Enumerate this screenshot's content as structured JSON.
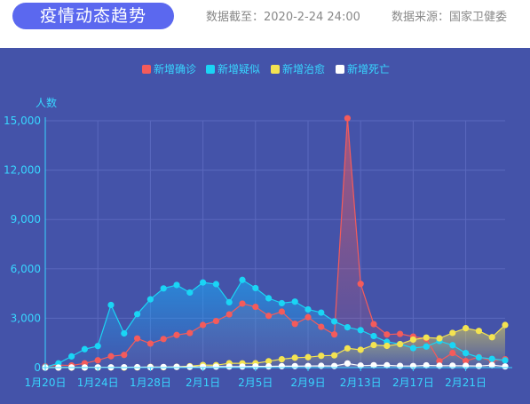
{
  "header": {
    "title": "疫情动态趋势",
    "data_time": "数据截至：2020-2-24 24:00",
    "data_source": "数据来源：国家卫健委"
  },
  "chart_data": {
    "type": "line",
    "ylabel": "人数",
    "ylim": [
      0,
      15000
    ],
    "yticks": [
      "0",
      "3,000",
      "6,000",
      "9,000",
      "12,000",
      "15,000"
    ],
    "x": [
      "1月20日",
      "1月21日",
      "1月22日",
      "1月23日",
      "1月24日",
      "1月25日",
      "1月26日",
      "1月27日",
      "1月28日",
      "1月29日",
      "1月30日",
      "1月31日",
      "2月1日",
      "2月2日",
      "2月3日",
      "2月4日",
      "2月5日",
      "2月6日",
      "2月7日",
      "2月8日",
      "2月9日",
      "2月10日",
      "2月11日",
      "2月12日",
      "2月13日",
      "2月14日",
      "2月15日",
      "2月16日",
      "2月17日",
      "2月18日",
      "2月19日",
      "2月20日",
      "2月21日",
      "2月22日",
      "2月23日",
      "2月24日"
    ],
    "xtick_labels": [
      "1月20日",
      "1月24日",
      "1月28日",
      "2月1日",
      "2月5日",
      "2月9日",
      "2月13日",
      "2月17日",
      "2月21日"
    ],
    "xtick_indices": [
      0,
      4,
      8,
      12,
      16,
      20,
      24,
      28,
      32
    ],
    "legend_position": "top-center",
    "grid": true,
    "series": [
      {
        "name": "新增确诊",
        "color": "#f45b5b",
        "values": [
          77,
          149,
          131,
          259,
          444,
          688,
          769,
          1771,
          1459,
          1737,
          1982,
          2102,
          2590,
          2829,
          3235,
          3887,
          3694,
          3143,
          3399,
          2656,
          3062,
          2478,
          2015,
          15152,
          5090,
          2641,
          2009,
          2048,
          1886,
          1749,
          394,
          889,
          397,
          648,
          409,
          508
        ]
      },
      {
        "name": "新增疑似",
        "color": "#1ad5f5",
        "values": [
          27,
          257,
          680,
          1118,
          1309,
          3806,
          2077,
          3248,
          4148,
          4812,
          5019,
          4562,
          5173,
          5072,
          3971,
          5328,
          4833,
          4214,
          3916,
          4008,
          3536,
          3342,
          2807,
          2450,
          2277,
          1918,
          1563,
          1432,
          1185,
          1277,
          1614,
          1361,
          882,
          620,
          530,
          439
        ]
      },
      {
        "name": "新增治愈",
        "color": "#f3e351",
        "values": [
          0,
          0,
          0,
          6,
          3,
          11,
          2,
          9,
          43,
          21,
          47,
          85,
          157,
          147,
          262,
          261,
          262,
          387,
          510,
          600,
          632,
          716,
          744,
          1171,
          1081,
          1373,
          1323,
          1425,
          1701,
          1824,
          1779,
          2109,
          2394,
          2230,
          1846,
          2589
        ]
      },
      {
        "name": "新增死亡",
        "color": "#ffffff",
        "values": [
          0,
          3,
          8,
          8,
          16,
          15,
          24,
          26,
          26,
          38,
          43,
          46,
          45,
          57,
          64,
          65,
          73,
          73,
          86,
          89,
          97,
          108,
          97,
          254,
          121,
          143,
          142,
          105,
          98,
          136,
          114,
          118,
          109,
          97,
          150,
          71
        ]
      }
    ]
  }
}
